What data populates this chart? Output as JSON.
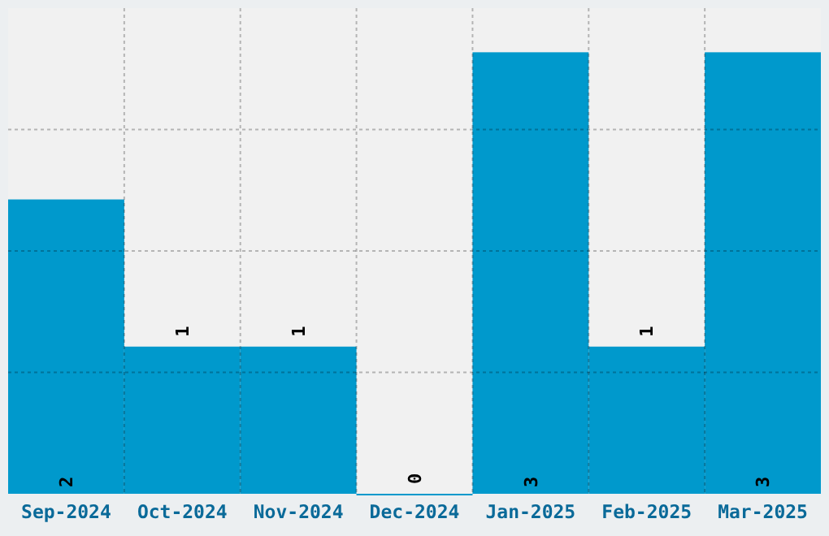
{
  "chart_data": {
    "type": "bar",
    "categories": [
      "Sep-2024",
      "Oct-2024",
      "Nov-2024",
      "Dec-2024",
      "Jan-2025",
      "Feb-2025",
      "Mar-2025"
    ],
    "values": [
      2,
      1,
      1,
      0,
      3,
      1,
      3
    ],
    "color": "#0099cc",
    "ylim": [
      0,
      3.3
    ],
    "yticks": [
      {
        "value": 0.825,
        "label": null
      },
      {
        "value": 1.65,
        "label": null
      },
      {
        "value": 2.475,
        "label": null
      }
    ],
    "grid": true,
    "tick_labels": "x",
    "data_labels": true
  }
}
